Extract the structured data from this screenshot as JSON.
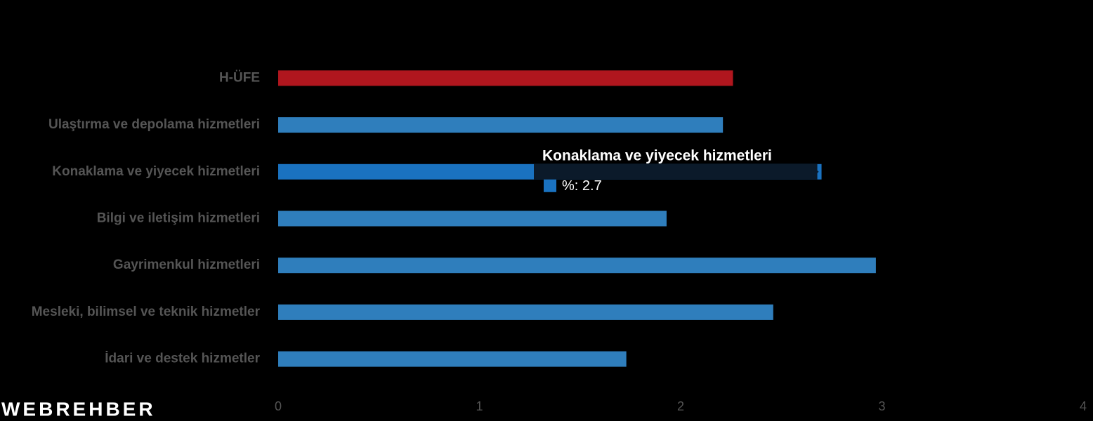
{
  "chart_data": {
    "type": "hbar",
    "categories": [
      "H-ÜFE",
      "Ulaştırma ve depolama hizmetleri",
      "Konaklama ve yiyecek hizmetleri",
      "Bilgi ve iletişim hizmetleri",
      "Gayrimenkul hizmetleri",
      "Mesleki, bilimsel ve teknik hizmetler",
      "İdari ve destek hizmetler"
    ],
    "series": [
      {
        "name": "%",
        "values": [
          2.26,
          2.21,
          2.7,
          1.93,
          2.97,
          2.46,
          1.73
        ],
        "colors": [
          "#b0161e",
          "#2f7ebc",
          "#1a72c0",
          "#2f7ebc",
          "#2f7ebc",
          "#2f7ebc",
          "#2f7ebc"
        ]
      }
    ],
    "xlim": [
      0,
      4
    ],
    "xticks": [
      0,
      1,
      2,
      3,
      4
    ],
    "tooltip": {
      "title": "Konaklama ve yiyecek hizmetleri",
      "text": "%: 2.7"
    },
    "watermark": "WEBREHBER"
  }
}
